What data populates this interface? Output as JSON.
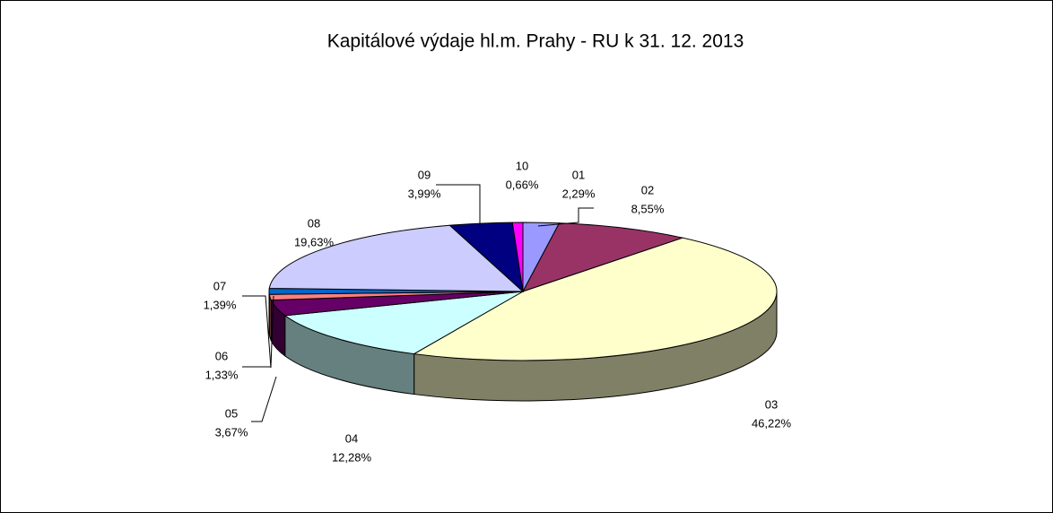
{
  "chart_data": {
    "type": "pie3d",
    "title": "Kapitálové výdaje hl.m. Prahy - RU k 31. 12. 2013",
    "categories": [
      "01",
      "02",
      "03",
      "04",
      "05",
      "06",
      "07",
      "08",
      "09",
      "10"
    ],
    "values": [
      2.29,
      8.55,
      46.22,
      12.28,
      3.67,
      1.33,
      1.39,
      19.63,
      3.99,
      0.66
    ],
    "value_labels": [
      "2,29%",
      "8,55%",
      "46,22%",
      "12,28%",
      "3,67%",
      "1,33%",
      "1,39%",
      "19,63%",
      "3,99%",
      "0,66%"
    ],
    "colors": [
      "#9999ff",
      "#993366",
      "#ffffcc",
      "#ccffff",
      "#660066",
      "#ff8080",
      "#0066cc",
      "#ccccff",
      "#000080",
      "#ff00ff"
    ]
  }
}
